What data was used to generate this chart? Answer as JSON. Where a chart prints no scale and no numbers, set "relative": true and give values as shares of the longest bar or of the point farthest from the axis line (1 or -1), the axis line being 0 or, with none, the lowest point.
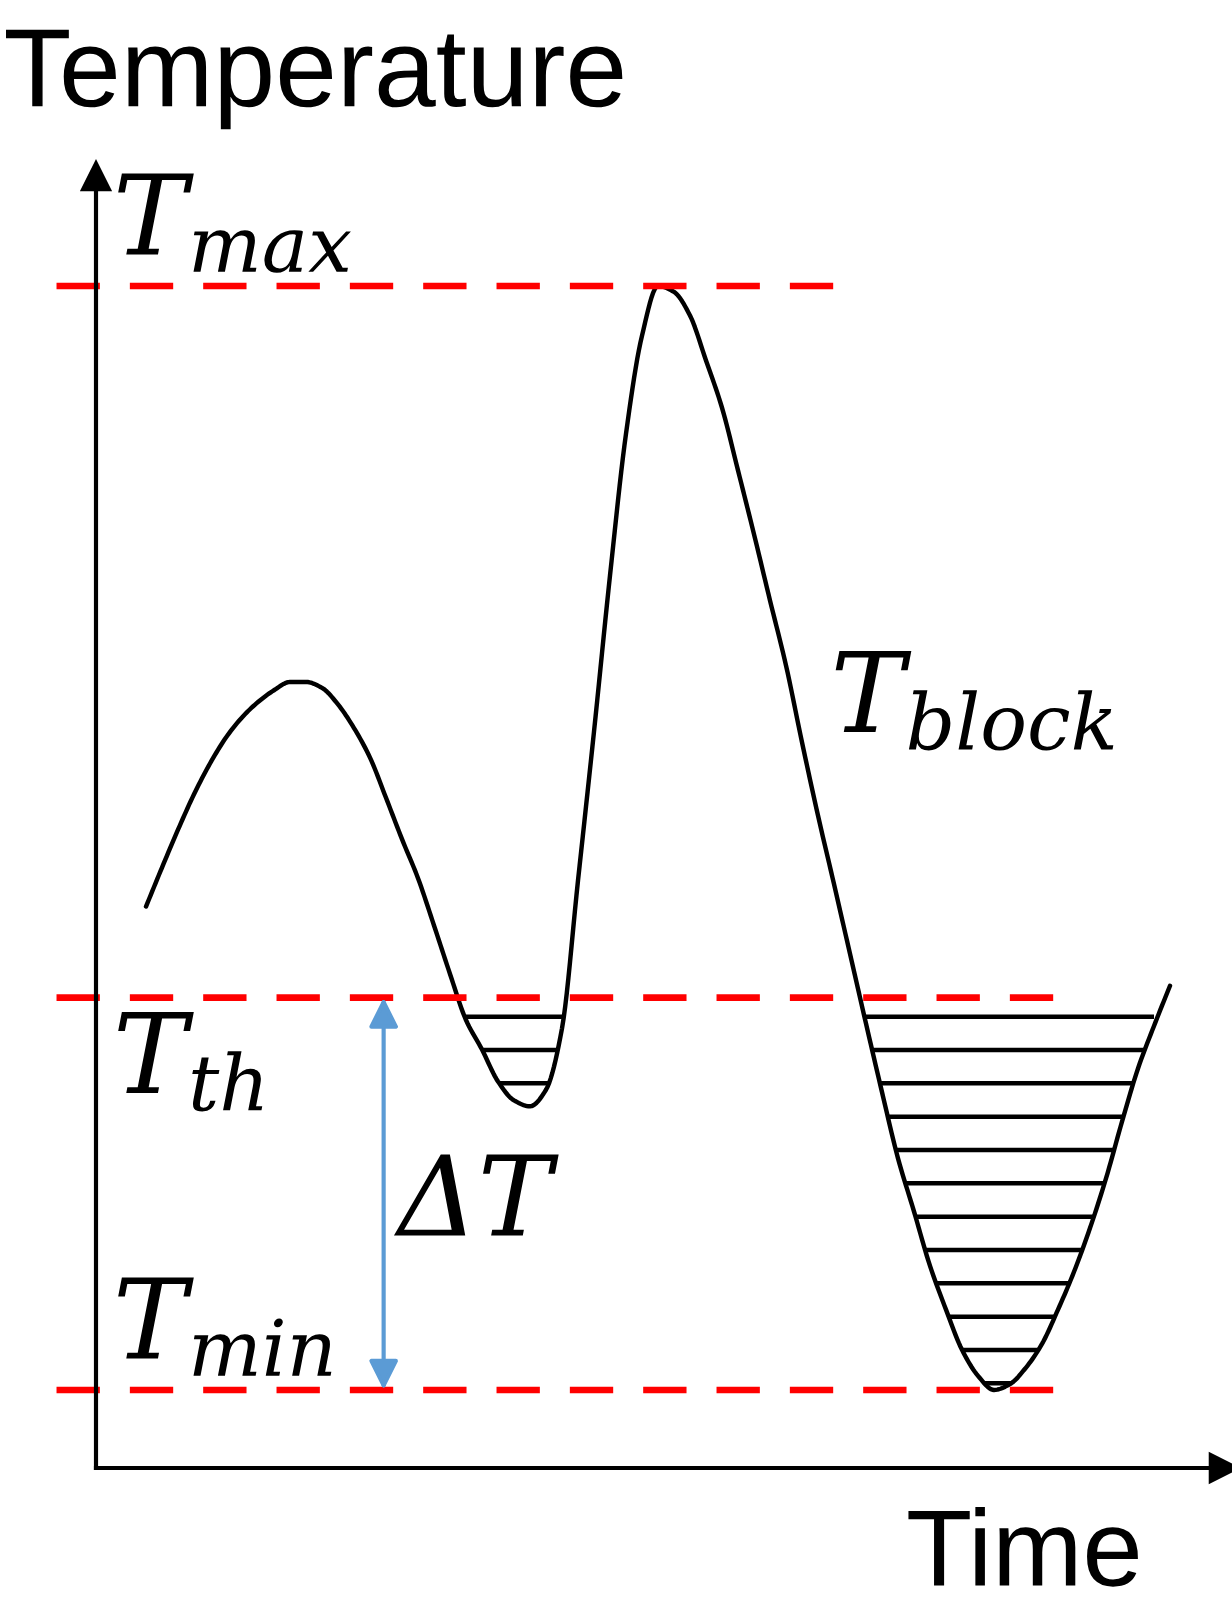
{
  "chart_data": {
    "type": "line",
    "relative": true,
    "xlabel": "Time",
    "ylabel": "Temperature",
    "categories": [
      null,
      null,
      null,
      null,
      null,
      null,
      null,
      null,
      null,
      null,
      null,
      null,
      null,
      null,
      null,
      null,
      null,
      null,
      null,
      null,
      null,
      null,
      null,
      null,
      null,
      null,
      null,
      null,
      null,
      null,
      null,
      null,
      null,
      null,
      null,
      null,
      null,
      null,
      null,
      null,
      null,
      null,
      null,
      null,
      null,
      null,
      null,
      null,
      null,
      null,
      null,
      null,
      null,
      null,
      null,
      null,
      null,
      null,
      null,
      null,
      null,
      null,
      null,
      null,
      null
    ],
    "series": [
      {
        "name": "T$_{block}$",
        "color": "#000000",
        "values": [
          0.475,
          0.508,
          0.54,
          0.57,
          0.596,
          0.618,
          0.635,
          0.648,
          0.658,
          0.665,
          0.665,
          0.66,
          0.646,
          0.626,
          0.601,
          0.567,
          0.532,
          0.499,
          0.459,
          0.418,
          0.379,
          0.354,
          0.327,
          0.311,
          0.306,
          0.32,
          0.372,
          0.497,
          0.623,
          0.755,
          0.875,
          0.958,
          1.0,
          0.995,
          0.975,
          0.937,
          0.897,
          0.844,
          0.79,
          0.734,
          0.679,
          0.614,
          0.552,
          0.494,
          0.435,
          0.376,
          0.318,
          0.262,
          0.217,
          0.171,
          0.134,
          0.1,
          0.078,
          0.066,
          0.071,
          0.085,
          0.105,
          0.134,
          0.166,
          0.203,
          0.245,
          0.293,
          0.338,
          0.374,
          0.408
        ],
        "lower": [
          null,
          null,
          null,
          null,
          null,
          null,
          null,
          null,
          null,
          null,
          null,
          null,
          null,
          null,
          null,
          null,
          null,
          null,
          null,
          null,
          0.379,
          0.354,
          0.327,
          0.311,
          0.306,
          0.32,
          0.372,
          null,
          null,
          null,
          null,
          null,
          null,
          null,
          null,
          null,
          null,
          null,
          null,
          null,
          null,
          null,
          null,
          null,
          null,
          0.376,
          0.318,
          0.262,
          0.217,
          0.171,
          0.134,
          0.1,
          0.078,
          0.066,
          0.071,
          0.085,
          0.105,
          0.134,
          0.166,
          0.203,
          0.245,
          0.293,
          0.338,
          0.374,
          null
        ],
        "upper": [
          null,
          null,
          null,
          null,
          null,
          null,
          null,
          null,
          null,
          null,
          null,
          null,
          null,
          null,
          null,
          null,
          null,
          null,
          null,
          null,
          0.398,
          0.398,
          0.398,
          0.398,
          0.398,
          0.398,
          0.398,
          null,
          null,
          null,
          null,
          null,
          null,
          null,
          null,
          null,
          null,
          null,
          null,
          null,
          null,
          null,
          null,
          null,
          null,
          0.398,
          0.398,
          0.398,
          0.398,
          0.398,
          0.398,
          0.398,
          0.398,
          0.398,
          0.398,
          0.398,
          0.398,
          0.398,
          0.398,
          0.398,
          0.398,
          0.398,
          0.398,
          0.398,
          null
        ]
      }
    ],
    "ref_lines": [
      {
        "axis": "y",
        "value": 1.0,
        "label": "T$_{max}$",
        "color": "#ff0000",
        "line_style": "dashed"
      },
      {
        "axis": "y",
        "value": 0.398,
        "label": "T$_{th}$",
        "color": "#ff0000",
        "line_style": "dashed"
      },
      {
        "axis": "y",
        "value": 0.066,
        "label": "T$_{min}$",
        "color": "#ff0000",
        "line_style": "dashed"
      }
    ],
    "annotations": [
      "ΔT"
    ]
  }
}
